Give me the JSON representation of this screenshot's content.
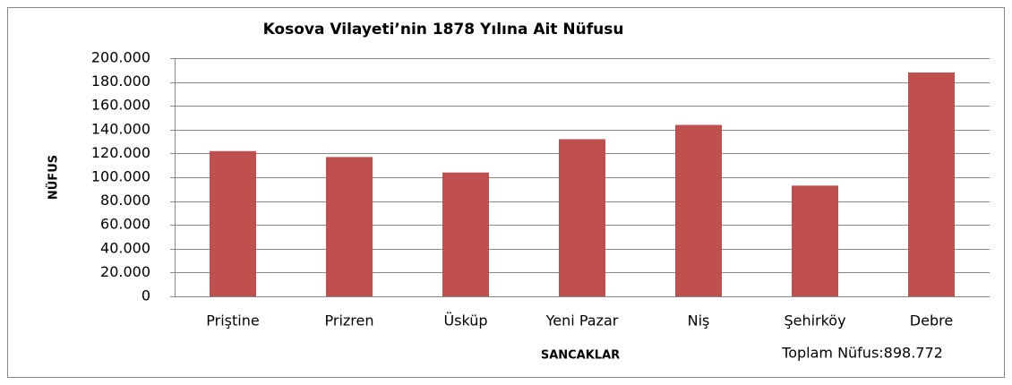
{
  "chart_data": {
    "type": "bar",
    "title": "Kosova Vilayeti’nin 1878 Yılına Ait Nüfusu",
    "x_label": "SANCAKLAR",
    "y_label": "NÜFUS",
    "annotation": "Toplam Nüfus:898.772",
    "categories": [
      "Priştine",
      "Prizren",
      "Üsküp",
      "Yeni Pazar",
      "Niş",
      "Şehirköy",
      "Debre"
    ],
    "values": [
      122000,
      117000,
      104000,
      132000,
      144000,
      93000,
      188000
    ],
    "color": "#c0504d",
    "ylim": [
      0,
      200000
    ],
    "yticks": [
      0,
      {
        "value": 20000,
        "label": "20.000"
      },
      {
        "value": 40000,
        "label": "40.000"
      },
      {
        "value": 60000,
        "label": "60.000"
      },
      {
        "value": 80000,
        "label": "80.000"
      },
      {
        "value": 100000,
        "label": "100.000"
      },
      {
        "value": 120000,
        "label": "120.000"
      },
      {
        "value": 140000,
        "label": "140.000"
      },
      {
        "value": 160000,
        "label": "160.000"
      },
      {
        "value": 180000,
        "label": "180.000"
      },
      {
        "value": 200000,
        "label": "200.000"
      }
    ],
    "grid": true
  }
}
